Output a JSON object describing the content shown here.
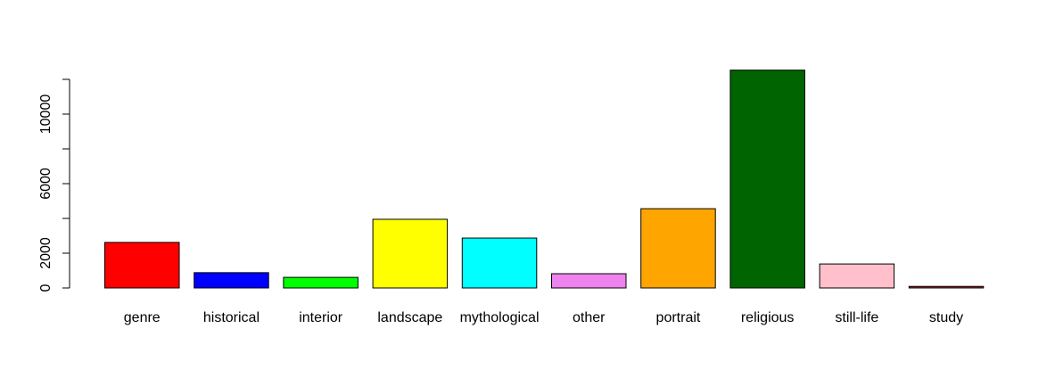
{
  "chart_data": {
    "type": "bar",
    "title": "",
    "xlabel": "",
    "ylabel": "",
    "categories": [
      "genre",
      "historical",
      "interior",
      "landscape",
      "mythological",
      "other",
      "portrait",
      "religious",
      "still-life",
      "study"
    ],
    "values": [
      2620,
      880,
      610,
      3950,
      2870,
      820,
      4560,
      12530,
      1380,
      90
    ],
    "colors": [
      "#ff0000",
      "#0000ff",
      "#00ff00",
      "#ffff00",
      "#00ffff",
      "#ee82ee",
      "#ffa500",
      "#006400",
      "#ffc0cb",
      "#a52a2a"
    ],
    "yticks": [
      0,
      2000,
      6000,
      10000
    ],
    "yticks_minor": [
      4000,
      8000,
      12000
    ],
    "ylim": [
      0,
      12000
    ],
    "grid": false,
    "legend": "none"
  }
}
